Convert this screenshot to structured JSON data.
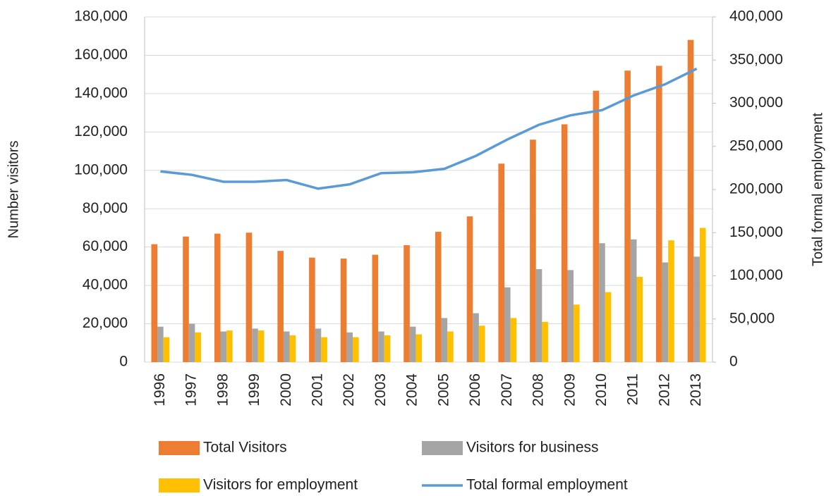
{
  "chart_data": {
    "type": "bar-line",
    "y_label": "Number visitors",
    "y2_label": "Total formal employment",
    "categories": [
      "1996",
      "1997",
      "1998",
      "1999",
      "2000",
      "2001",
      "2002",
      "2003",
      "2004",
      "2005",
      "2006",
      "2007",
      "2008",
      "2009",
      "2010",
      "2011",
      "2012",
      "2013"
    ],
    "series": [
      {
        "name": "Total Visitors",
        "color": "#ed7d31",
        "kind": "bar",
        "values": [
          61500,
          65500,
          67000,
          67500,
          58000,
          54500,
          54000,
          56000,
          61000,
          68000,
          76000,
          103500,
          116000,
          124000,
          141500,
          152000,
          154500,
          168000
        ]
      },
      {
        "name": "Visitors for business",
        "color": "#a5a5a5",
        "kind": "bar",
        "values": [
          18500,
          20000,
          16000,
          17500,
          16000,
          17500,
          15500,
          16000,
          18500,
          23000,
          25500,
          39000,
          48500,
          48000,
          62000,
          64000,
          52000,
          55000
        ]
      },
      {
        "name": "Visitors for employment",
        "color": "#ffc000",
        "kind": "bar",
        "values": [
          13000,
          15500,
          16500,
          16500,
          14000,
          13000,
          13000,
          14000,
          14500,
          16000,
          19000,
          23000,
          21000,
          30000,
          36500,
          44500,
          63500,
          70000
        ]
      },
      {
        "name": "Total formal employment",
        "color": "#5b9bd5",
        "kind": "line",
        "axis": "y2",
        "values": [
          221000,
          217000,
          209000,
          209000,
          211000,
          201000,
          206000,
          219000,
          220000,
          224000,
          239000,
          258000,
          275000,
          286000,
          292000,
          309000,
          322000,
          340000
        ]
      }
    ],
    "ylim": [
      0,
      180000
    ],
    "yticks": [
      0,
      {
        "value": 20000,
        "label": "20,000"
      },
      {
        "value": 40000,
        "label": "40,000"
      },
      {
        "value": 60000,
        "label": "60,000"
      },
      {
        "value": 80000,
        "label": "80,000"
      },
      {
        "value": 100000,
        "label": "100,000"
      },
      {
        "value": 120000,
        "label": "120,000"
      },
      {
        "value": 140000,
        "label": "140,000"
      },
      {
        "value": 160000,
        "label": "160,000"
      },
      {
        "value": 180000,
        "label": "180,000"
      }
    ],
    "y2lim": [
      0,
      400000
    ],
    "y2ticks": [
      0,
      {
        "value": 50000,
        "label": "50,000"
      },
      {
        "value": 100000,
        "label": "100,000"
      },
      {
        "value": 150000,
        "label": "150,000"
      },
      {
        "value": 200000,
        "label": "200,000"
      },
      {
        "value": 250000,
        "label": "250,000"
      },
      {
        "value": 300000,
        "label": "300,000"
      },
      {
        "value": 350000,
        "label": "350,000"
      },
      {
        "value": 400000,
        "label": "400,000"
      }
    ],
    "grid": true,
    "legend": "bottom"
  }
}
